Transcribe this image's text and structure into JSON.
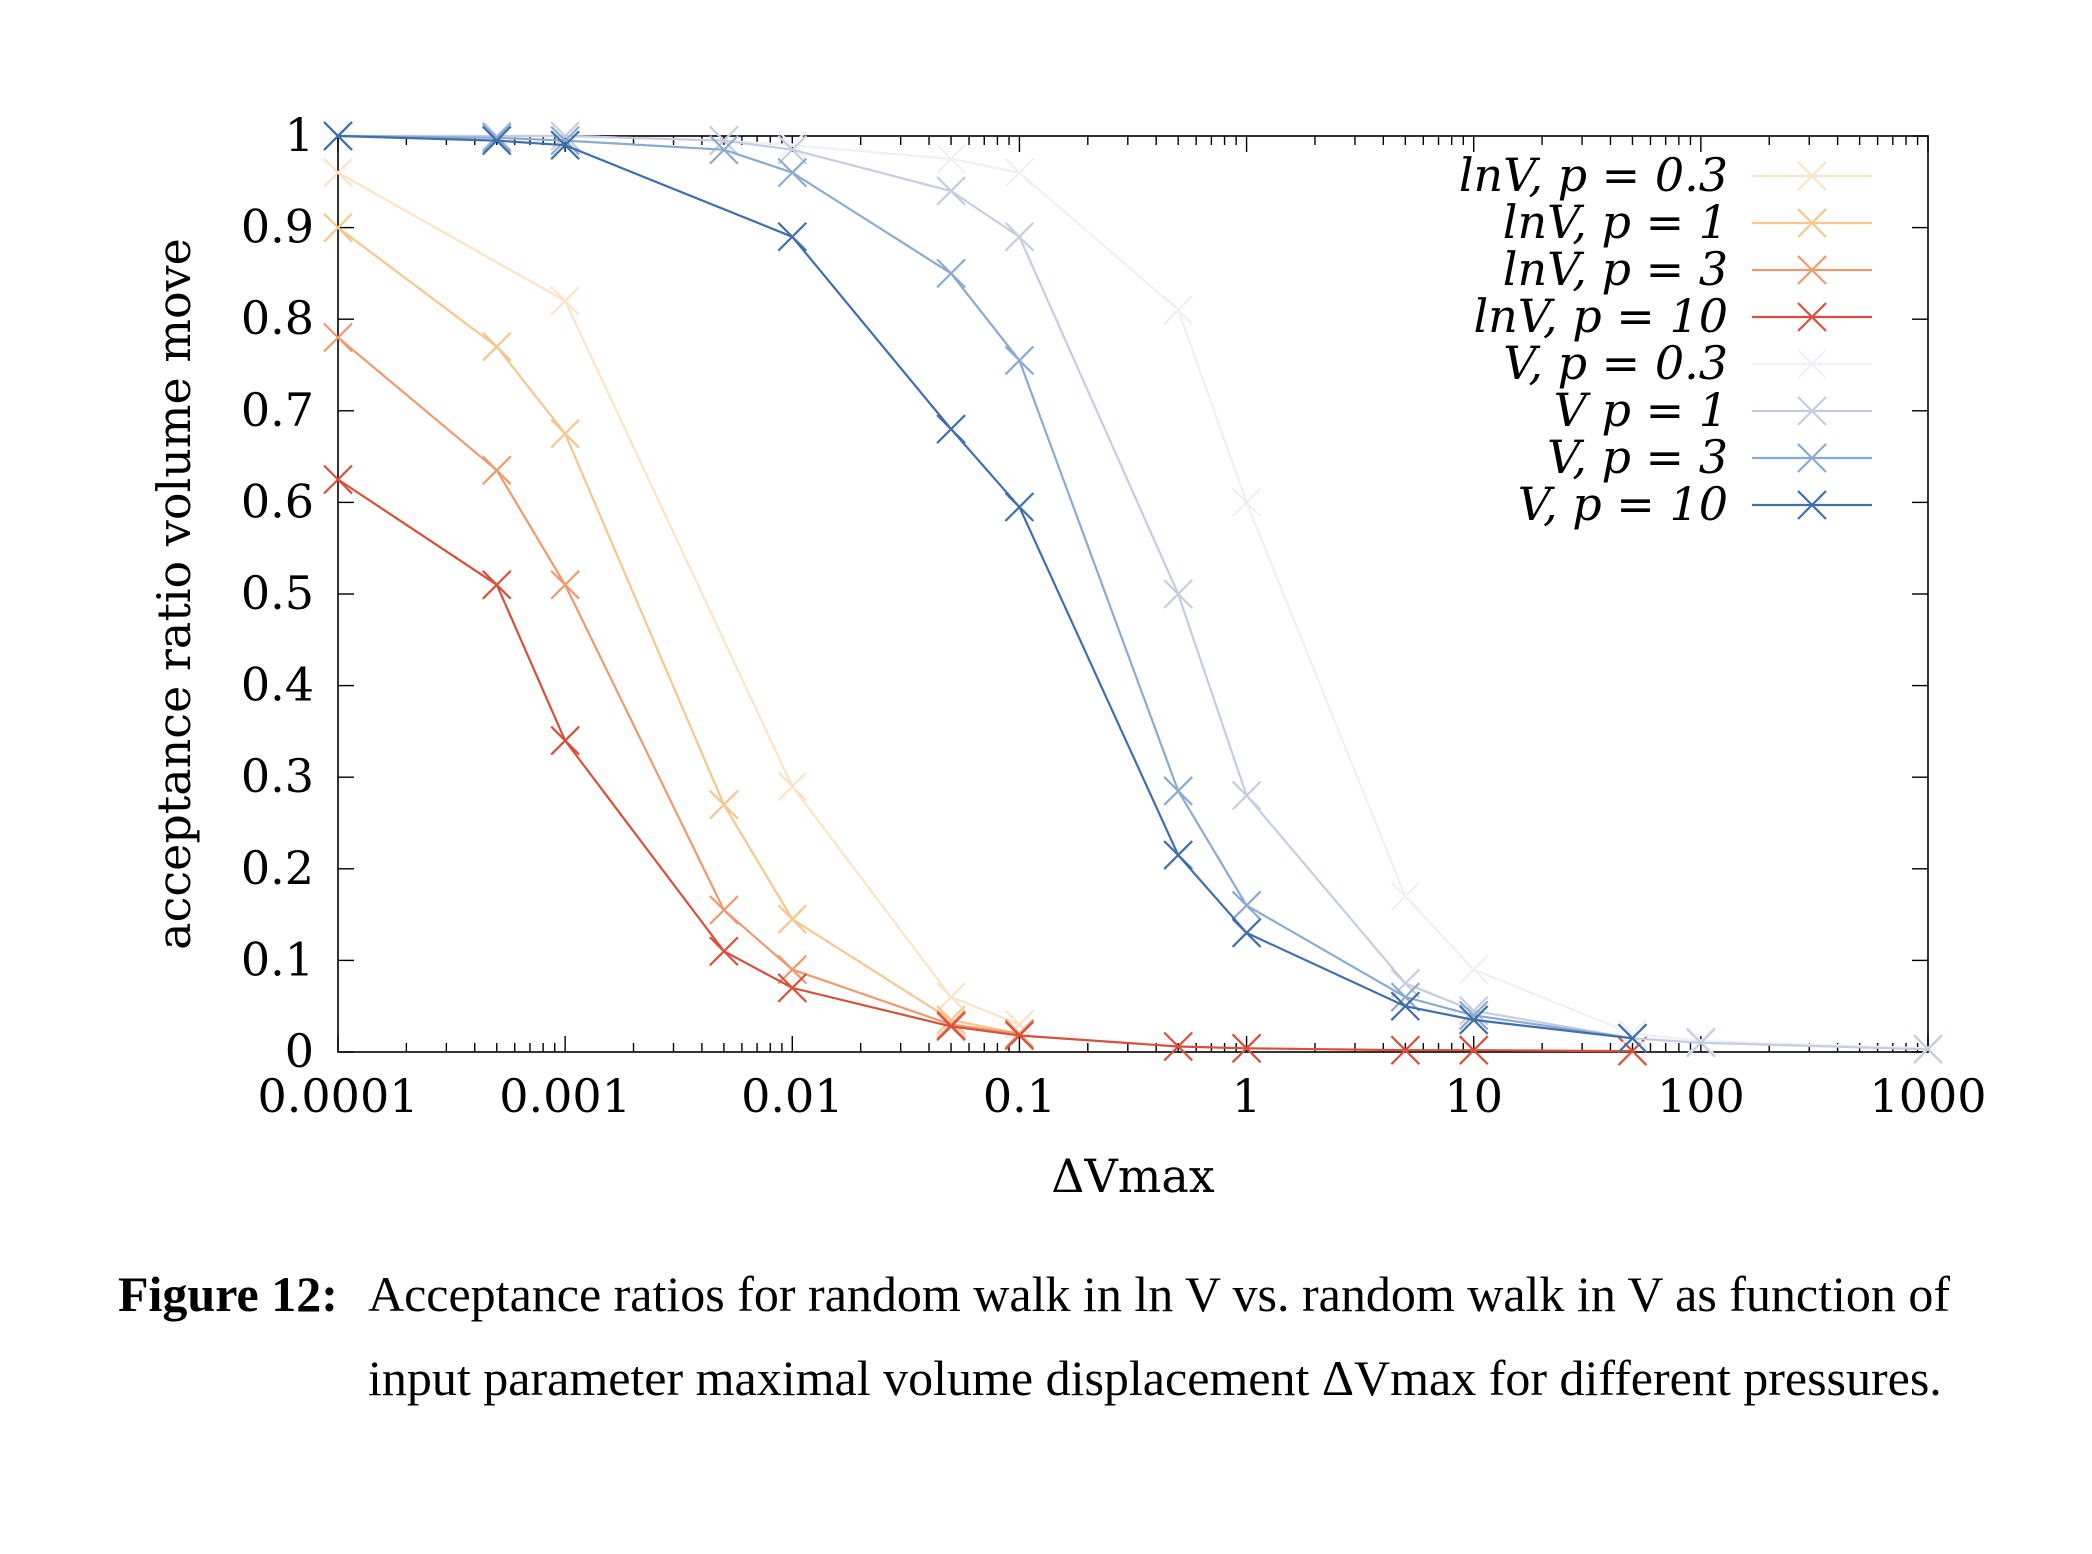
{
  "caption": {
    "label": "Figure 12:",
    "text": "Acceptance ratios for random walk in ln V vs. random walk in V as function of input parameter maximal volume displacement ΔVmax for different pressures."
  },
  "chart_data": {
    "type": "line",
    "xlabel": "ΔVmax",
    "ylabel": "acceptance ratio volume move",
    "xscale": "log",
    "xlim": [
      0.0001,
      1000
    ],
    "ylim": [
      0,
      1
    ],
    "xticks": [
      "0.0001",
      "0.001",
      "0.01",
      "0.1",
      "1",
      "10",
      "100",
      "1000"
    ],
    "yticks": [
      "0",
      "0.1",
      "0.2",
      "0.3",
      "0.4",
      "0.5",
      "0.6",
      "0.7",
      "0.8",
      "0.9",
      "1"
    ],
    "legend_position": "top-right",
    "grid": false,
    "marker": "x",
    "series": [
      {
        "name": "lnV, p = 0.3",
        "color": "#fbe3c6",
        "x": [
          0.0001,
          0.001,
          0.01,
          0.05,
          0.1
        ],
        "y": [
          0.96,
          0.82,
          0.29,
          0.06,
          0.03
        ]
      },
      {
        "name": "lnV, p = 1",
        "color": "#f6c78d",
        "x": [
          0.0001,
          0.0005,
          0.001,
          0.005,
          0.01,
          0.05,
          0.1
        ],
        "y": [
          0.9,
          0.77,
          0.675,
          0.27,
          0.145,
          0.035,
          0.02
        ]
      },
      {
        "name": "lnV, p = 3",
        "color": "#ee9a6e",
        "x": [
          0.0001,
          0.0005,
          0.001,
          0.005,
          0.01,
          0.05,
          0.1
        ],
        "y": [
          0.78,
          0.635,
          0.51,
          0.155,
          0.09,
          0.03,
          0.02
        ]
      },
      {
        "name": "lnV, p = 10",
        "color": "#d8503b",
        "x": [
          0.0001,
          0.0005,
          0.001,
          0.005,
          0.01,
          0.05,
          0.1,
          0.5,
          1,
          5,
          10,
          50
        ],
        "y": [
          0.625,
          0.51,
          0.34,
          0.11,
          0.07,
          0.028,
          0.018,
          0.006,
          0.004,
          0.002,
          0.002,
          0.001
        ]
      },
      {
        "name": "V, p = 0.3",
        "color": "#eef0f6",
        "x": [
          0.0001,
          0.0005,
          0.001,
          0.005,
          0.01,
          0.05,
          0.1,
          0.5,
          1,
          5,
          10,
          50,
          100,
          1000
        ],
        "y": [
          1.0,
          1.0,
          1.0,
          0.995,
          0.99,
          0.975,
          0.96,
          0.81,
          0.6,
          0.17,
          0.09,
          0.02,
          0.012,
          0.004
        ]
      },
      {
        "name": "V p = 1",
        "color": "#c6cce2",
        "x": [
          0.0001,
          0.0005,
          0.001,
          0.005,
          0.01,
          0.05,
          0.1,
          0.5,
          1,
          5,
          10,
          50,
          100,
          1000
        ],
        "y": [
          1.0,
          1.0,
          1.0,
          0.995,
          0.985,
          0.94,
          0.89,
          0.5,
          0.28,
          0.075,
          0.045,
          0.015,
          0.01,
          0.003
        ]
      },
      {
        "name": "V, p = 3",
        "color": "#8aabd0",
        "x": [
          0.0001,
          0.0005,
          0.001,
          0.005,
          0.01,
          0.05,
          0.1,
          0.5,
          1,
          5,
          10,
          50
        ],
        "y": [
          1.0,
          0.998,
          0.995,
          0.985,
          0.96,
          0.85,
          0.755,
          0.285,
          0.16,
          0.06,
          0.04,
          0.015
        ]
      },
      {
        "name": "V, p = 10",
        "color": "#3f6faa",
        "x": [
          0.0001,
          0.0005,
          0.001,
          0.01,
          0.05,
          0.1,
          0.5,
          1,
          5,
          10,
          50
        ],
        "y": [
          1.0,
          0.995,
          0.99,
          0.89,
          0.68,
          0.595,
          0.215,
          0.13,
          0.05,
          0.035,
          0.015
        ]
      }
    ]
  }
}
